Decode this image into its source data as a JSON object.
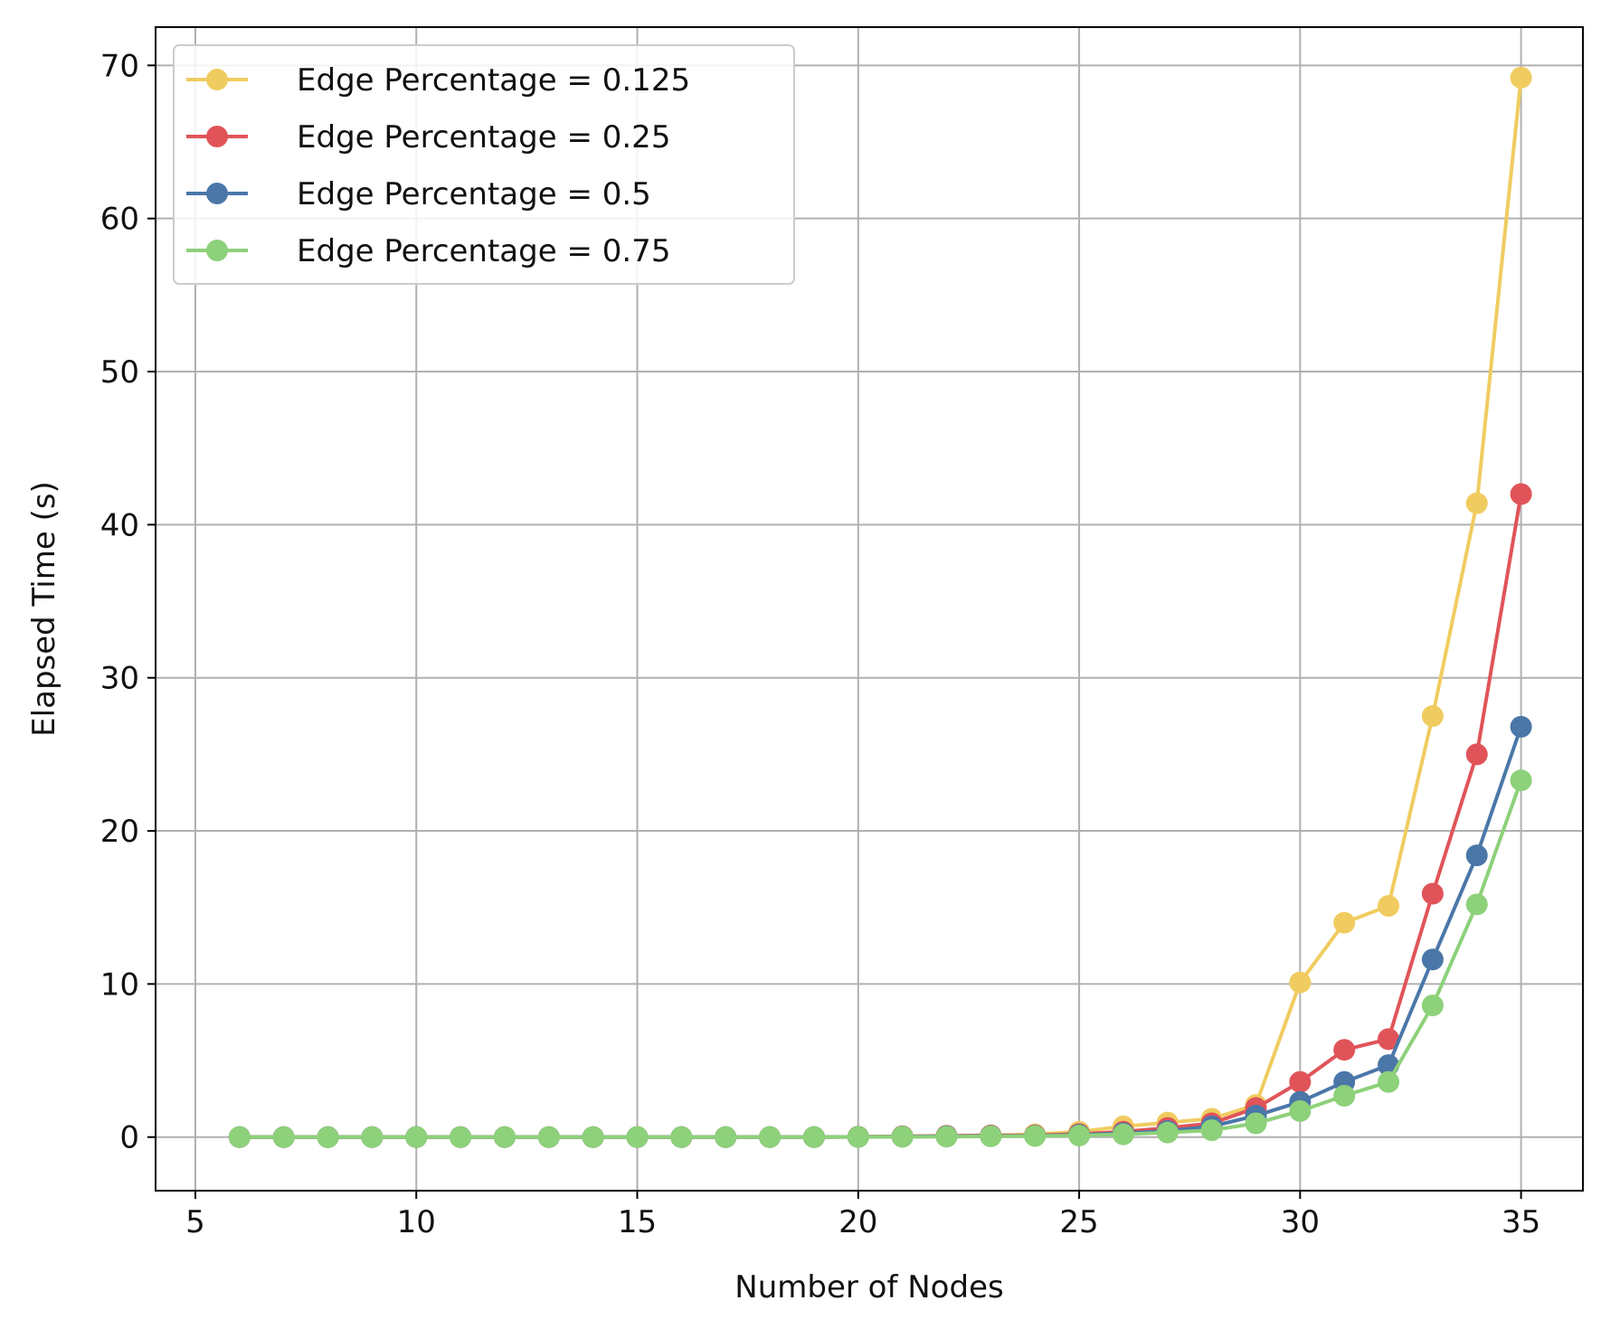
{
  "chart_data": {
    "type": "line",
    "xlabel": "Number of Nodes",
    "ylabel": "Elapsed Time (s)",
    "xlim": [
      4.1,
      36.4
    ],
    "ylim": [
      -3.5,
      72.5
    ],
    "xticks": [
      5,
      10,
      15,
      20,
      25,
      30,
      35
    ],
    "yticks": [
      0,
      10,
      20,
      30,
      40,
      50,
      60,
      70
    ],
    "grid": true,
    "legend_position": "top-left",
    "x": [
      6,
      7,
      8,
      9,
      10,
      11,
      12,
      13,
      14,
      15,
      16,
      17,
      18,
      19,
      20,
      21,
      22,
      23,
      24,
      25,
      26,
      27,
      28,
      29,
      30,
      31,
      32,
      33,
      34,
      35
    ],
    "series": [
      {
        "name": "Edge Percentage = 0.125",
        "color": "#f0cc60",
        "values": [
          0,
          0,
          0,
          0,
          0,
          0,
          0,
          0,
          0,
          0,
          0,
          0,
          0,
          0,
          0.02,
          0.05,
          0.08,
          0.12,
          0.18,
          0.35,
          0.7,
          0.95,
          1.2,
          2.1,
          10.1,
          14.0,
          15.1,
          27.5,
          41.4,
          69.2
        ]
      },
      {
        "name": "Edge Percentage = 0.25",
        "color": "#e05459",
        "values": [
          0,
          0,
          0,
          0,
          0,
          0,
          0,
          0,
          0,
          0,
          0,
          0,
          0,
          0,
          0.02,
          0.05,
          0.08,
          0.1,
          0.12,
          0.2,
          0.35,
          0.6,
          0.9,
          1.9,
          3.6,
          5.7,
          6.4,
          15.9,
          25.0,
          42.0
        ]
      },
      {
        "name": "Edge Percentage = 0.5",
        "color": "#4a77a8",
        "values": [
          0,
          0,
          0,
          0,
          0,
          0,
          0,
          0,
          0,
          0,
          0,
          0,
          0,
          0,
          0.01,
          0.03,
          0.05,
          0.07,
          0.09,
          0.15,
          0.25,
          0.4,
          0.7,
          1.4,
          2.3,
          3.6,
          4.7,
          11.6,
          18.4,
          26.8
        ]
      },
      {
        "name": "Edge Percentage = 0.75",
        "color": "#8dd17a",
        "values": [
          0,
          0,
          0,
          0,
          0,
          0,
          0,
          0,
          0,
          0,
          0,
          0,
          0,
          0,
          0.01,
          0.02,
          0.03,
          0.05,
          0.07,
          0.1,
          0.18,
          0.3,
          0.45,
          0.9,
          1.7,
          2.7,
          3.6,
          8.6,
          15.2,
          23.3
        ]
      }
    ]
  }
}
